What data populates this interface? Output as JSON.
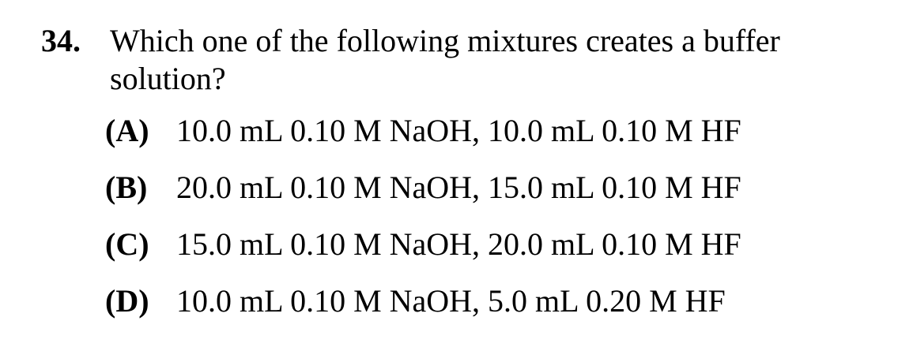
{
  "question": {
    "number": "34.",
    "stem": "Which one of the following mixtures creates a buffer solution?",
    "options": [
      {
        "letter": "(A)",
        "text": "10.0 mL 0.10 M NaOH, 10.0 mL 0.10 M HF"
      },
      {
        "letter": "(B)",
        "text": "20.0 mL 0.10 M NaOH, 15.0 mL 0.10 M HF"
      },
      {
        "letter": "(C)",
        "text": "15.0 mL 0.10 M NaOH, 20.0 mL 0.10 M HF"
      },
      {
        "letter": "(D)",
        "text": "10.0 mL 0.10 M NaOH, 5.0 mL 0.20 M HF"
      }
    ]
  }
}
